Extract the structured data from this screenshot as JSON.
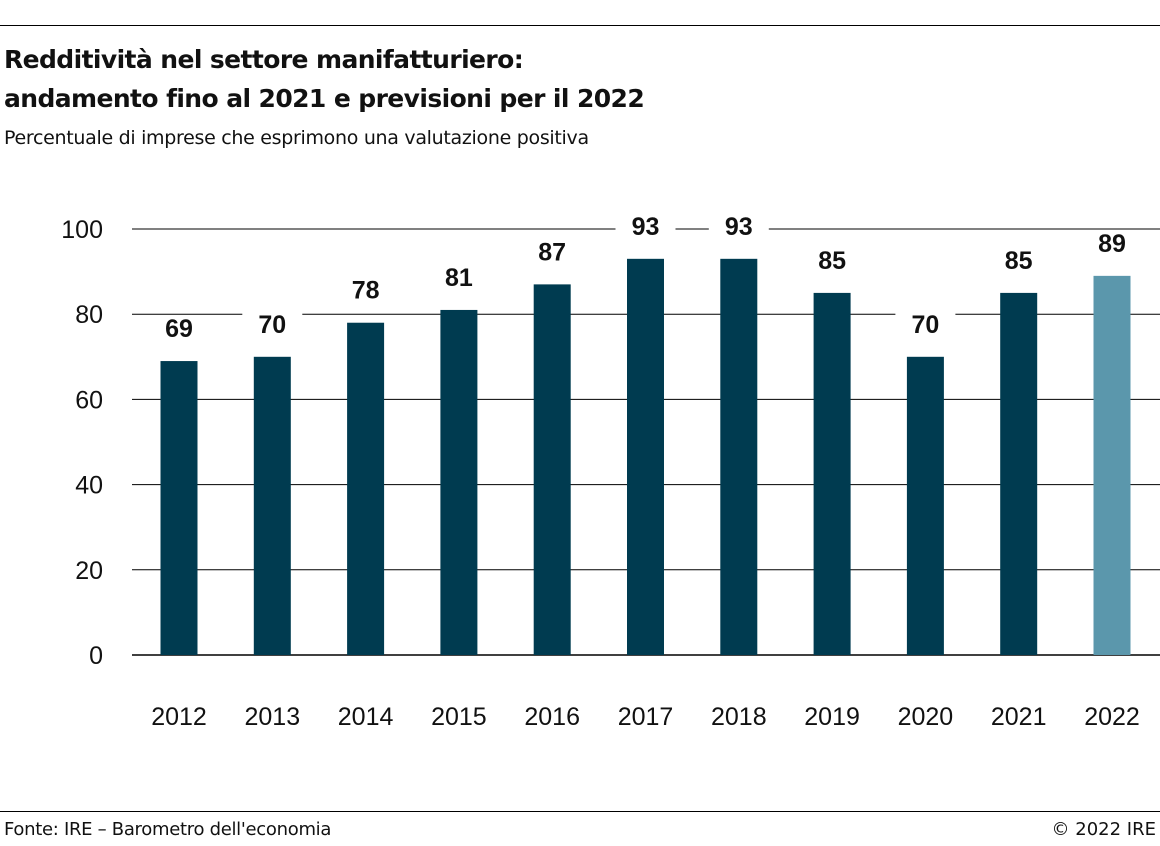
{
  "header": {
    "title_line1": "Redditività nel settore manifatturiero:",
    "title_line2": "andamento fino al 2021 e previsioni per il 2022",
    "subtitle": "Percentuale di imprese che esprimono una valutazione positiva"
  },
  "chart_data": {
    "type": "bar",
    "title": "Redditività nel settore manifatturiero: andamento fino al 2021 e previsioni per il 2022",
    "subtitle": "Percentuale di imprese che esprimono una valutazione positiva",
    "xlabel": "",
    "ylabel": "",
    "categories": [
      "2012",
      "2013",
      "2014",
      "2015",
      "2016",
      "2017",
      "2018",
      "2019",
      "2020",
      "2021",
      "2022"
    ],
    "values": [
      69,
      70,
      78,
      81,
      87,
      93,
      93,
      85,
      70,
      85,
      89
    ],
    "data_labels": [
      "69",
      "70",
      "78",
      "81",
      "87",
      "93",
      "93",
      "85",
      "70",
      "85",
      "89"
    ],
    "ylim": [
      0,
      100
    ],
    "yticks": [
      0,
      20,
      40,
      60,
      80,
      100
    ],
    "ytick_labels": [
      "0",
      "20",
      "40",
      "60",
      "80",
      "100"
    ],
    "grid": true,
    "colors": {
      "actual": "#003b50",
      "forecast": "#5b97ac",
      "grid": "#000000"
    },
    "forecast_categories": [
      "2022"
    ]
  },
  "footer": {
    "source": "Fonte: IRE – Barometro dell'economia",
    "copyright": "© 2022 IRE"
  }
}
